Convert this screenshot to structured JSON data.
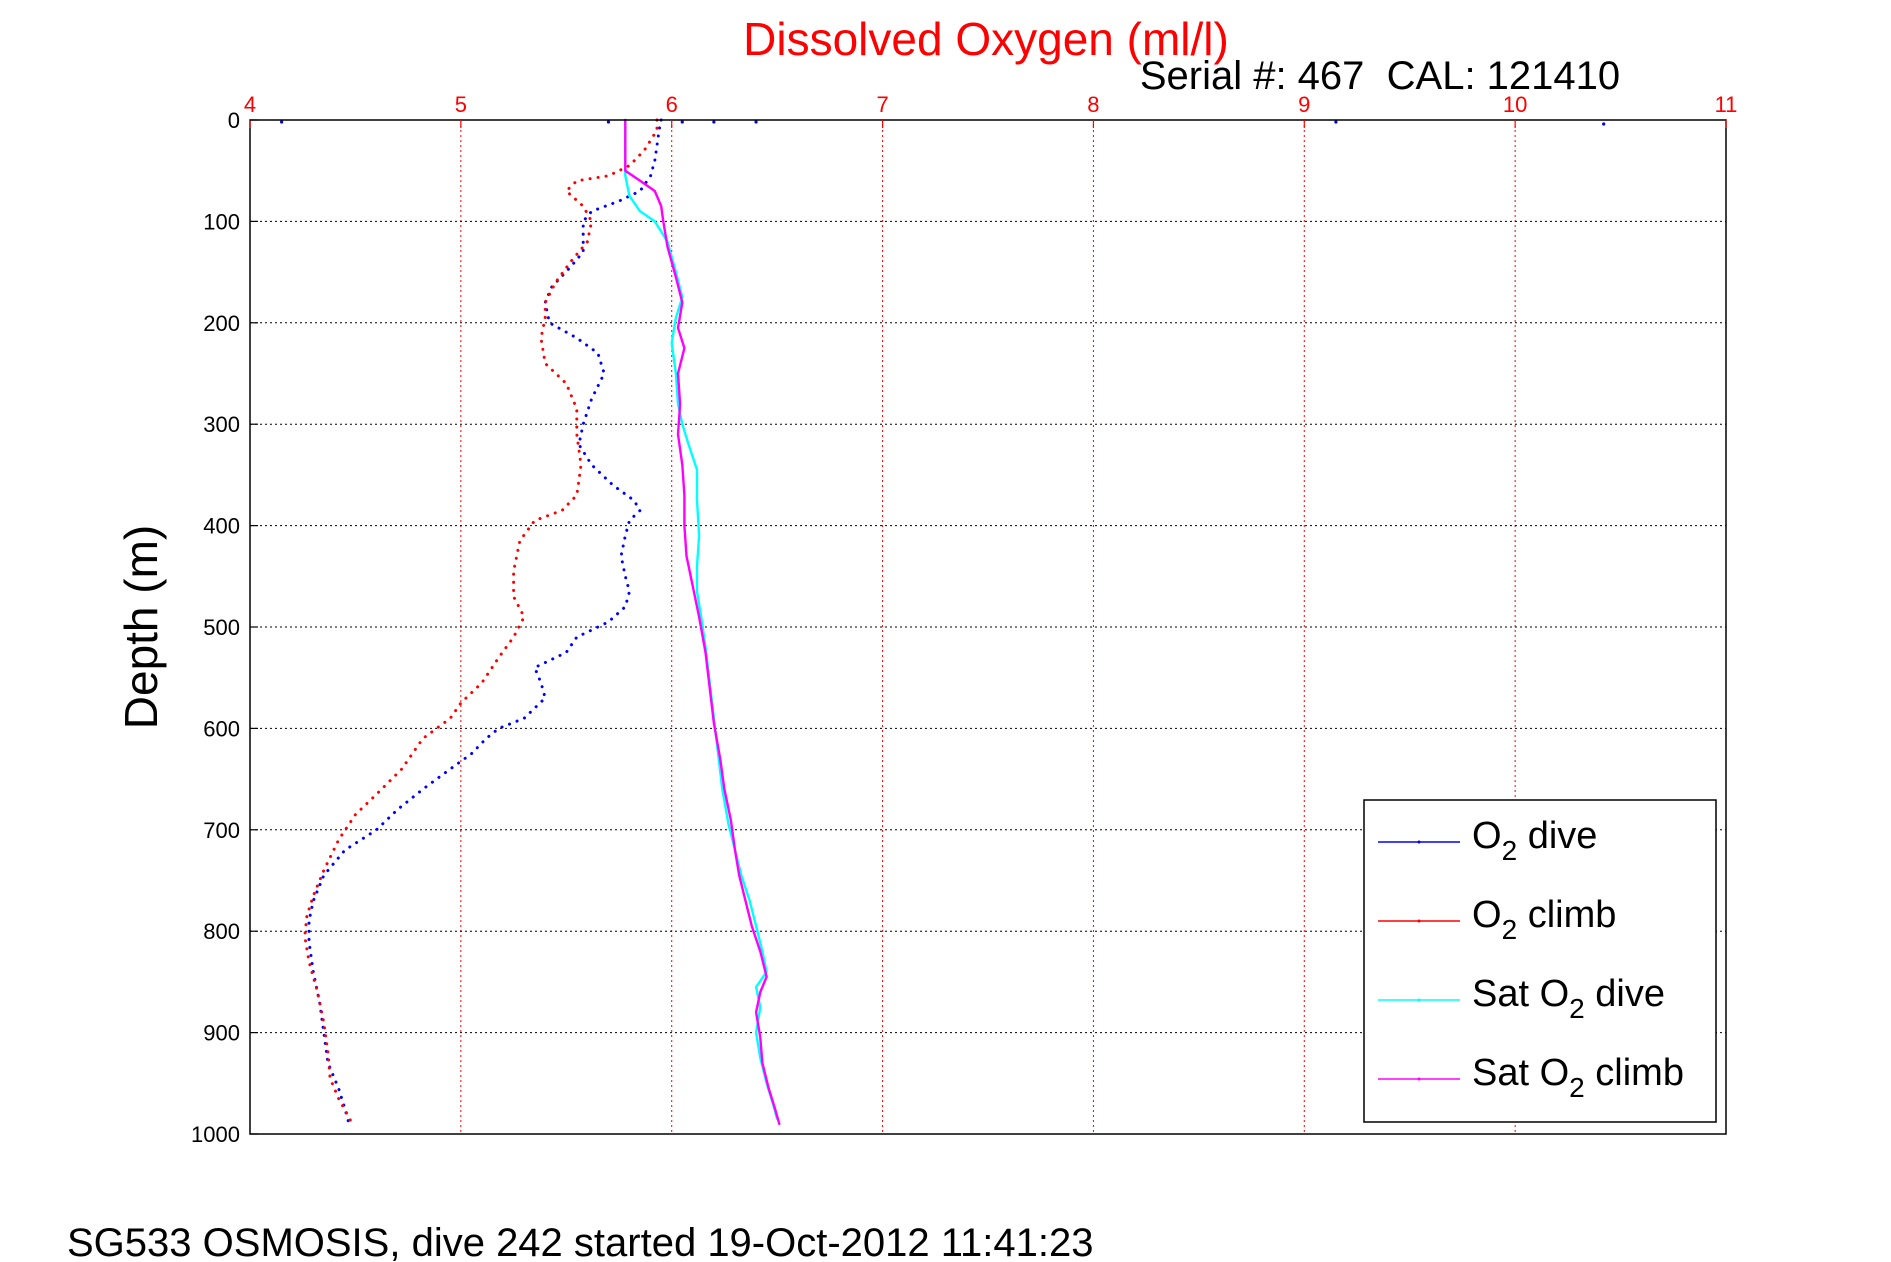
{
  "chart_data": {
    "type": "line",
    "title": "Dissolved Oxygen (ml/l)",
    "subtitle": "Serial #: 467  CAL: 121410",
    "footer": "SG533 OSMOSIS, dive 242 started 19-Oct-2012 11:41:23",
    "xlabel": "",
    "ylabel": "Depth (m)",
    "xlim": [
      4,
      11
    ],
    "ylim": [
      0,
      1000
    ],
    "y_reversed": true,
    "x_axis_position": "top",
    "xticks": [
      "4",
      "5",
      "6",
      "7",
      "8",
      "9",
      "10",
      "11"
    ],
    "yticks": [
      "0",
      "100",
      "200",
      "300",
      "400",
      "500",
      "600",
      "700",
      "800",
      "900",
      "1000"
    ],
    "grid": true,
    "legend_position": "bottom-right",
    "colors": {
      "title": "#ff0000",
      "x_ticks": "#ff0000",
      "grid_x": "#ff0000",
      "grid_y": "#000000"
    },
    "series": [
      {
        "legend_main": "O",
        "legend_sub": "2",
        "legend_rest": " dive",
        "color": "#0000ff",
        "style": "dotted",
        "points": [
          [
            5.95,
            0
          ],
          [
            5.94,
            10
          ],
          [
            5.93,
            25
          ],
          [
            5.92,
            40
          ],
          [
            5.9,
            55
          ],
          [
            5.85,
            70
          ],
          [
            5.75,
            80
          ],
          [
            5.62,
            90
          ],
          [
            5.58,
            100
          ],
          [
            5.58,
            115
          ],
          [
            5.58,
            130
          ],
          [
            5.52,
            145
          ],
          [
            5.43,
            165
          ],
          [
            5.4,
            180
          ],
          [
            5.42,
            200
          ],
          [
            5.55,
            215
          ],
          [
            5.65,
            230
          ],
          [
            5.68,
            250
          ],
          [
            5.62,
            275
          ],
          [
            5.58,
            300
          ],
          [
            5.56,
            320
          ],
          [
            5.62,
            340
          ],
          [
            5.72,
            360
          ],
          [
            5.82,
            375
          ],
          [
            5.85,
            385
          ],
          [
            5.8,
            395
          ],
          [
            5.78,
            410
          ],
          [
            5.76,
            430
          ],
          [
            5.78,
            450
          ],
          [
            5.8,
            465
          ],
          [
            5.78,
            480
          ],
          [
            5.7,
            495
          ],
          [
            5.6,
            505
          ],
          [
            5.55,
            510
          ],
          [
            5.5,
            525
          ],
          [
            5.35,
            540
          ],
          [
            5.38,
            555
          ],
          [
            5.4,
            570
          ],
          [
            5.3,
            590
          ],
          [
            5.18,
            600
          ],
          [
            5.12,
            610
          ],
          [
            5.05,
            625
          ],
          [
            4.95,
            640
          ],
          [
            4.82,
            660
          ],
          [
            4.7,
            680
          ],
          [
            4.6,
            700
          ],
          [
            4.45,
            720
          ],
          [
            4.35,
            745
          ],
          [
            4.3,
            770
          ],
          [
            4.28,
            790
          ],
          [
            4.28,
            810
          ],
          [
            4.3,
            840
          ],
          [
            4.33,
            870
          ],
          [
            4.35,
            900
          ],
          [
            4.37,
            930
          ],
          [
            4.42,
            955
          ],
          [
            4.45,
            975
          ],
          [
            4.47,
            990
          ]
        ]
      },
      {
        "legend_main": "O",
        "legend_sub": "2",
        "legend_rest": " climb",
        "color": "#ff0000",
        "style": "dotted",
        "points": [
          [
            5.93,
            0
          ],
          [
            5.93,
            10
          ],
          [
            5.9,
            20
          ],
          [
            5.87,
            30
          ],
          [
            5.8,
            45
          ],
          [
            5.7,
            55
          ],
          [
            5.55,
            60
          ],
          [
            5.5,
            70
          ],
          [
            5.58,
            85
          ],
          [
            5.62,
            100
          ],
          [
            5.6,
            120
          ],
          [
            5.52,
            140
          ],
          [
            5.45,
            160
          ],
          [
            5.4,
            180
          ],
          [
            5.4,
            195
          ],
          [
            5.38,
            215
          ],
          [
            5.4,
            240
          ],
          [
            5.5,
            260
          ],
          [
            5.55,
            285
          ],
          [
            5.55,
            310
          ],
          [
            5.57,
            340
          ],
          [
            5.55,
            370
          ],
          [
            5.48,
            385
          ],
          [
            5.35,
            395
          ],
          [
            5.28,
            415
          ],
          [
            5.25,
            445
          ],
          [
            5.25,
            470
          ],
          [
            5.3,
            490
          ],
          [
            5.25,
            510
          ],
          [
            5.18,
            530
          ],
          [
            5.1,
            555
          ],
          [
            5.0,
            575
          ],
          [
            4.95,
            590
          ],
          [
            4.82,
            610
          ],
          [
            4.72,
            640
          ],
          [
            4.6,
            665
          ],
          [
            4.5,
            685
          ],
          [
            4.42,
            710
          ],
          [
            4.35,
            740
          ],
          [
            4.3,
            765
          ],
          [
            4.27,
            785
          ],
          [
            4.26,
            805
          ],
          [
            4.28,
            830
          ],
          [
            4.32,
            860
          ],
          [
            4.35,
            890
          ],
          [
            4.37,
            920
          ],
          [
            4.38,
            945
          ],
          [
            4.42,
            965
          ],
          [
            4.46,
            980
          ],
          [
            4.48,
            988
          ]
        ]
      },
      {
        "legend_main": "Sat O",
        "legend_sub": "2",
        "legend_rest": " dive",
        "color": "#00ffff",
        "style": "solid",
        "points": [
          [
            5.78,
            0
          ],
          [
            5.78,
            30
          ],
          [
            5.78,
            55
          ],
          [
            5.8,
            75
          ],
          [
            5.85,
            90
          ],
          [
            5.92,
            100
          ],
          [
            5.98,
            120
          ],
          [
            6.02,
            150
          ],
          [
            6.05,
            175
          ],
          [
            6.02,
            195
          ],
          [
            6.0,
            220
          ],
          [
            6.02,
            250
          ],
          [
            6.03,
            280
          ],
          [
            6.05,
            300
          ],
          [
            6.08,
            320
          ],
          [
            6.12,
            345
          ],
          [
            6.12,
            375
          ],
          [
            6.13,
            410
          ],
          [
            6.12,
            440
          ],
          [
            6.12,
            465
          ],
          [
            6.14,
            490
          ],
          [
            6.16,
            520
          ],
          [
            6.18,
            555
          ],
          [
            6.2,
            590
          ],
          [
            6.22,
            625
          ],
          [
            6.24,
            660
          ],
          [
            6.27,
            695
          ],
          [
            6.3,
            720
          ],
          [
            6.33,
            745
          ],
          [
            6.37,
            770
          ],
          [
            6.4,
            795
          ],
          [
            6.43,
            820
          ],
          [
            6.45,
            840
          ],
          [
            6.4,
            855
          ],
          [
            6.42,
            875
          ],
          [
            6.4,
            900
          ],
          [
            6.42,
            925
          ],
          [
            6.45,
            950
          ],
          [
            6.48,
            970
          ],
          [
            6.5,
            985
          ]
        ]
      },
      {
        "legend_main": "Sat O",
        "legend_sub": "2",
        "legend_rest": " climb",
        "color": "#ff00ff",
        "style": "solid",
        "points": [
          [
            5.78,
            0
          ],
          [
            5.78,
            30
          ],
          [
            5.78,
            50
          ],
          [
            5.85,
            60
          ],
          [
            5.92,
            70
          ],
          [
            5.95,
            85
          ],
          [
            5.96,
            100
          ],
          [
            5.98,
            125
          ],
          [
            6.02,
            155
          ],
          [
            6.05,
            180
          ],
          [
            6.03,
            205
          ],
          [
            6.06,
            225
          ],
          [
            6.03,
            250
          ],
          [
            6.04,
            280
          ],
          [
            6.03,
            310
          ],
          [
            6.05,
            340
          ],
          [
            6.06,
            370
          ],
          [
            6.06,
            400
          ],
          [
            6.07,
            430
          ],
          [
            6.1,
            460
          ],
          [
            6.13,
            490
          ],
          [
            6.16,
            525
          ],
          [
            6.18,
            560
          ],
          [
            6.2,
            595
          ],
          [
            6.23,
            630
          ],
          [
            6.25,
            660
          ],
          [
            6.28,
            690
          ],
          [
            6.3,
            720
          ],
          [
            6.32,
            745
          ],
          [
            6.35,
            770
          ],
          [
            6.38,
            795
          ],
          [
            6.42,
            820
          ],
          [
            6.45,
            845
          ],
          [
            6.42,
            860
          ],
          [
            6.4,
            880
          ],
          [
            6.42,
            905
          ],
          [
            6.43,
            930
          ],
          [
            6.46,
            955
          ],
          [
            6.49,
            975
          ],
          [
            6.51,
            990
          ]
        ]
      }
    ],
    "outliers": [
      [
        4.15,
        0
      ],
      [
        5.7,
        0
      ],
      [
        6.05,
        0
      ],
      [
        6.2,
        0
      ],
      [
        6.4,
        0
      ],
      [
        9.15,
        0
      ],
      [
        10.42,
        2
      ]
    ]
  }
}
